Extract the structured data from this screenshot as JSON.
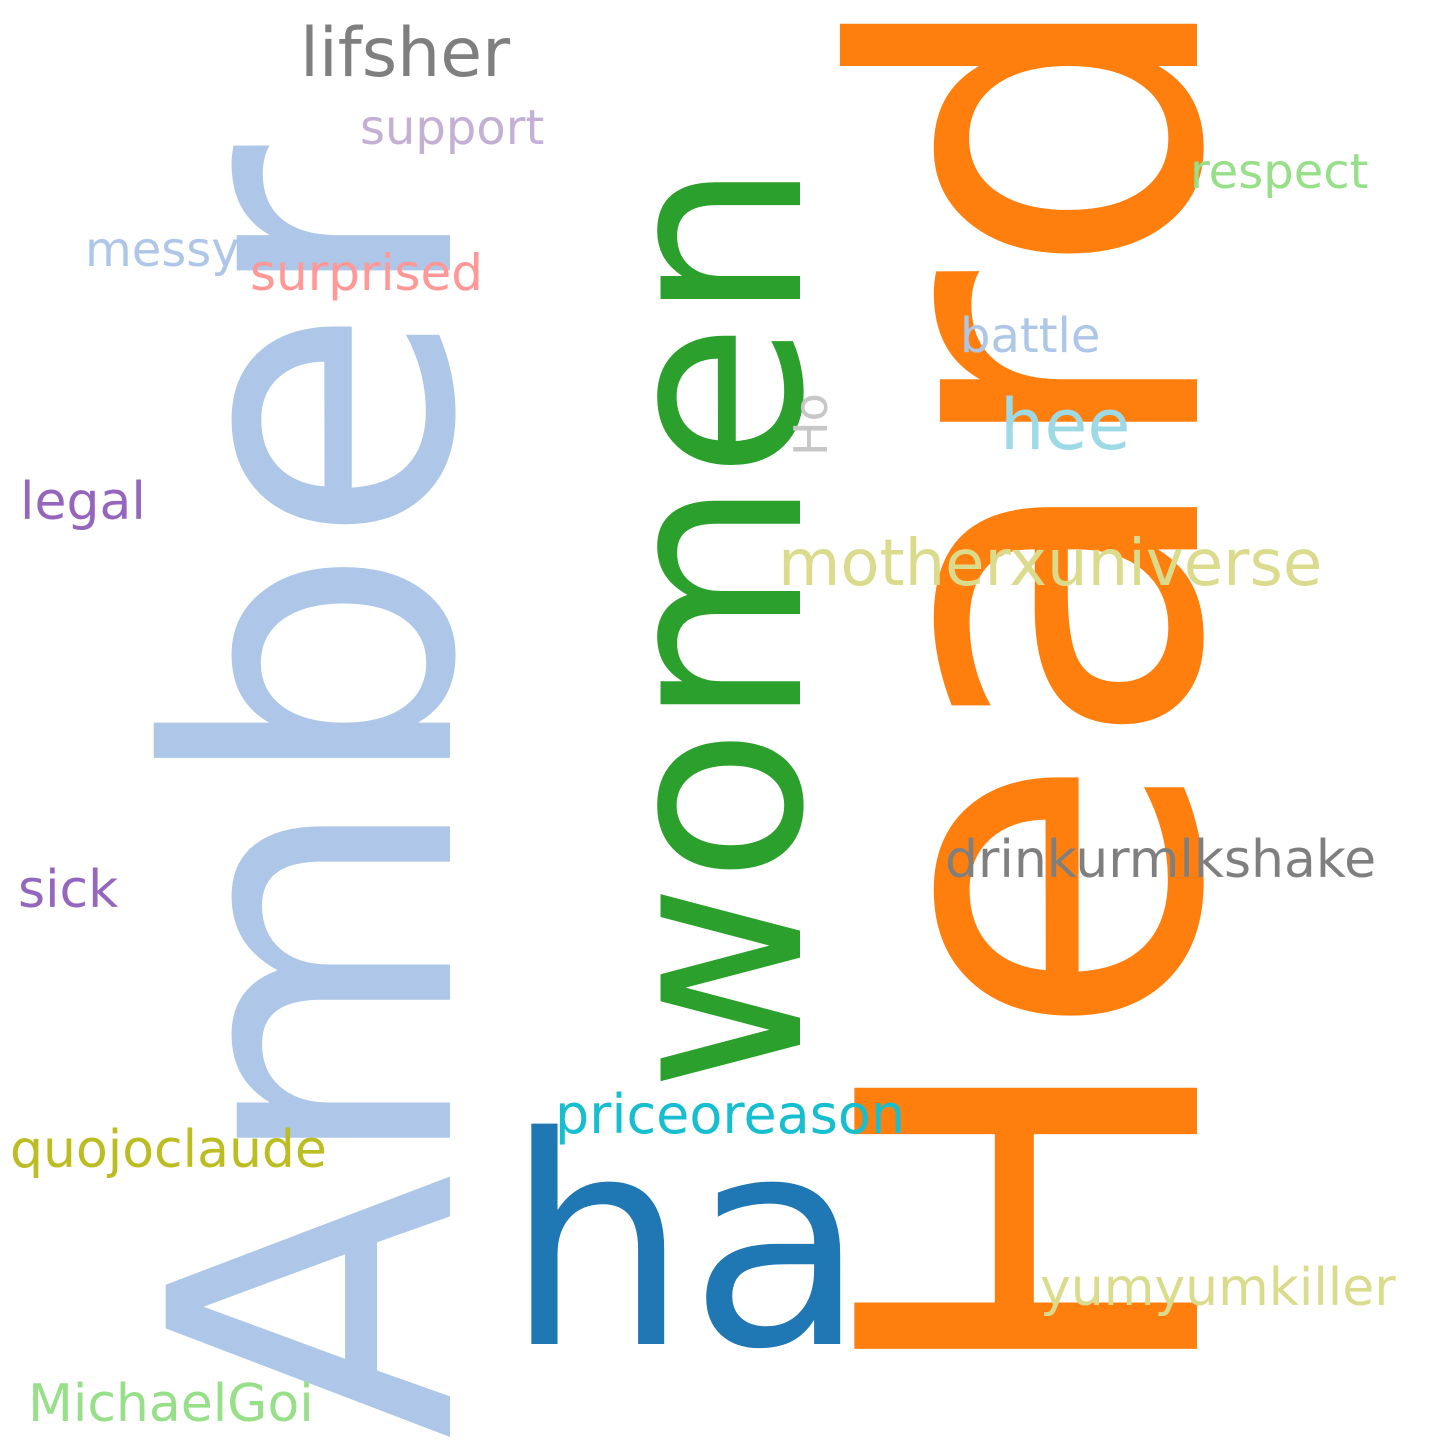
{
  "words": {
    "amber": {
      "text": "Amber",
      "color": "#aec7e8"
    },
    "heard": {
      "text": "Heard",
      "color": "#ff7f0e"
    },
    "women": {
      "text": "women",
      "color": "#2ca02c"
    },
    "ha": {
      "text": "ha",
      "color": "#1f77b4"
    },
    "lifsher": {
      "text": "lifsher",
      "color": "#7f7f7f"
    },
    "support": {
      "text": "support",
      "color": "#c5b0d5"
    },
    "respect": {
      "text": "respect",
      "color": "#98df8a"
    },
    "messy": {
      "text": "messy",
      "color": "#aec7e8"
    },
    "surprised": {
      "text": "surprised",
      "color": "#ff9896"
    },
    "battle": {
      "text": "battle",
      "color": "#aec7e8"
    },
    "ho": {
      "text": "Ho",
      "color": "#c7c7c7"
    },
    "hee": {
      "text": "hee",
      "color": "#9edae5"
    },
    "legal": {
      "text": "legal",
      "color": "#9467bd"
    },
    "motherxuniverse": {
      "text": "motherxuniverse",
      "color": "#dbdb8d"
    },
    "drinkurmlkshake": {
      "text": "drinkurmlkshake",
      "color": "#7f7f7f"
    },
    "sick": {
      "text": "sick",
      "color": "#9467bd"
    },
    "priceoreason": {
      "text": "priceoreason",
      "color": "#17becf"
    },
    "quojoclaude": {
      "text": "quojoclaude",
      "color": "#bcbd22"
    },
    "yumyumkiller": {
      "text": "yumyumkiller",
      "color": "#dbdb8d"
    },
    "michaelgoi": {
      "text": "MichaelGoi",
      "color": "#98df8a"
    }
  }
}
